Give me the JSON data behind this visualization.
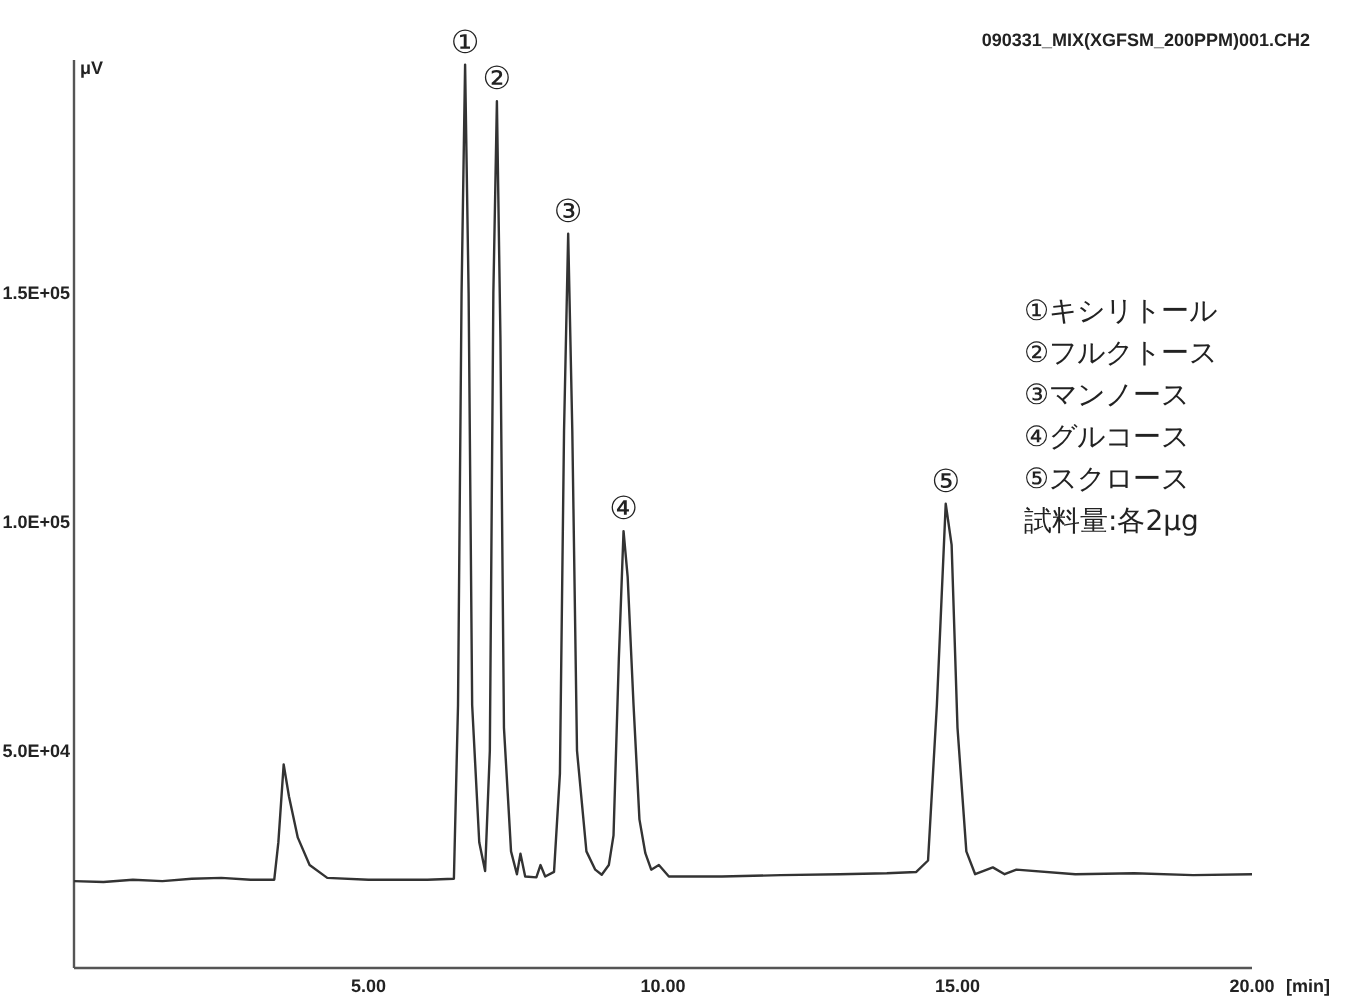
{
  "chart_data": {
    "type": "line",
    "title": "090331_MIX(XGFSM_200PPM)001.CH2",
    "xlabel": "[min]",
    "ylabel": "μV",
    "xlim": [
      0,
      20
    ],
    "ylim": [
      2500,
      201000
    ],
    "xticks": [
      {
        "value": 5,
        "label": "5.00"
      },
      {
        "value": 10,
        "label": "10.00"
      },
      {
        "value": 15,
        "label": "15.00"
      },
      {
        "value": 20,
        "label": "20.00"
      }
    ],
    "yticks": [
      {
        "value": 50000,
        "label": "5.0E+04"
      },
      {
        "value": 100000,
        "label": "1.0E+05"
      },
      {
        "value": 150000,
        "label": "1.5E+05"
      }
    ],
    "grid": false,
    "series": [
      {
        "color": "#333333",
        "x": [
          0.0,
          0.5,
          1.0,
          1.5,
          2.0,
          2.5,
          3.0,
          3.4,
          3.47,
          3.56,
          3.65,
          3.8,
          4.0,
          4.3,
          5.0,
          6.0,
          6.45,
          6.52,
          6.58,
          6.64,
          6.7,
          6.76,
          6.88,
          6.98,
          7.06,
          7.12,
          7.18,
          7.24,
          7.3,
          7.42,
          7.52,
          7.58,
          7.66,
          7.85,
          7.92,
          8.0,
          8.15,
          8.25,
          8.32,
          8.39,
          8.46,
          8.54,
          8.7,
          8.85,
          8.96,
          9.08,
          9.16,
          9.25,
          9.33,
          9.4,
          9.5,
          9.6,
          9.7,
          9.8,
          9.93,
          10.1,
          11,
          12,
          13,
          13.8,
          14.3,
          14.5,
          14.65,
          14.8,
          14.9,
          15.0,
          15.15,
          15.3,
          15.6,
          15.8,
          16,
          17,
          18,
          19,
          20
        ],
        "values": [
          21500,
          21300,
          21800,
          21500,
          22000,
          22200,
          21800,
          21800,
          30000,
          47000,
          40000,
          31000,
          25000,
          22200,
          21800,
          21800,
          22000,
          60000,
          150000,
          200000,
          150000,
          60000,
          30000,
          23700,
          50000,
          150000,
          192000,
          140000,
          55000,
          28000,
          23000,
          27500,
          22500,
          22300,
          25000,
          22500,
          23500,
          45000,
          120000,
          163000,
          120000,
          50000,
          28000,
          24000,
          22900,
          25000,
          31500,
          70000,
          98000,
          88000,
          60000,
          35000,
          27600,
          24000,
          25000,
          22500,
          22500,
          22800,
          23000,
          23200,
          23500,
          26000,
          60000,
          104000,
          95000,
          55000,
          28000,
          23000,
          24500,
          23000,
          24000,
          23000,
          23200,
          22800,
          23000
        ]
      }
    ],
    "annotations": [
      {
        "text": "①",
        "x": 6.64,
        "y": 200000
      },
      {
        "text": "②",
        "x": 7.18,
        "y": 192000
      },
      {
        "text": "③",
        "x": 8.39,
        "y": 163000
      },
      {
        "text": "④",
        "x": 9.33,
        "y": 98000
      },
      {
        "text": "⑤",
        "x": 14.8,
        "y": 104000
      },
      "①キシリトール",
      "②フルクトース",
      "③マンノース",
      "④グルコース",
      "⑤スクロース",
      "試料量:各2μg"
    ]
  }
}
